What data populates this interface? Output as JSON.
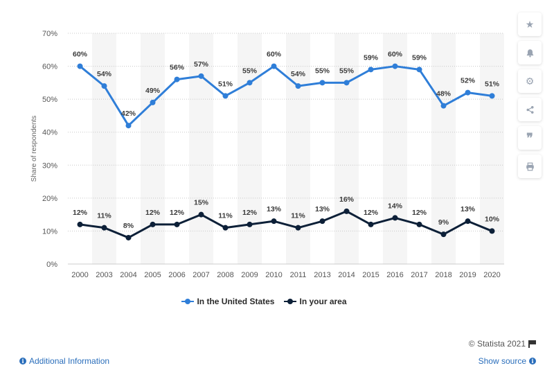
{
  "chart_data": {
    "type": "line",
    "x": [
      "2000",
      "2003",
      "2004",
      "2005",
      "2006",
      "2007",
      "2008",
      "2009",
      "2010",
      "2011",
      "2013",
      "2014",
      "2015",
      "2016",
      "2017",
      "2018",
      "2019",
      "2020"
    ],
    "series": [
      {
        "name": "In the United States",
        "color": "#2f7ed8",
        "values": [
          60,
          54,
          42,
          49,
          56,
          57,
          51,
          55,
          60,
          54,
          55,
          55,
          59,
          60,
          59,
          48,
          52,
          51
        ]
      },
      {
        "name": "In your area",
        "color": "#0d2038",
        "values": [
          12,
          11,
          8,
          12,
          12,
          15,
          11,
          12,
          13,
          11,
          13,
          16,
          12,
          14,
          12,
          9,
          13,
          10
        ]
      }
    ],
    "ylabel": "Share of respondents",
    "ylim": [
      0,
      70
    ],
    "yticks": [
      0,
      10,
      20,
      30,
      40,
      50,
      60,
      70
    ],
    "value_suffix": "%",
    "grid": true,
    "legend_position": "bottom-center"
  },
  "toolbar": {
    "buttons": [
      "star-icon",
      "bell-icon",
      "gear-icon",
      "share-icon",
      "quote-icon",
      "print-icon"
    ]
  },
  "footer": {
    "credit": "© Statista 2021",
    "additional_info": "Additional Information",
    "show_source": "Show source"
  }
}
